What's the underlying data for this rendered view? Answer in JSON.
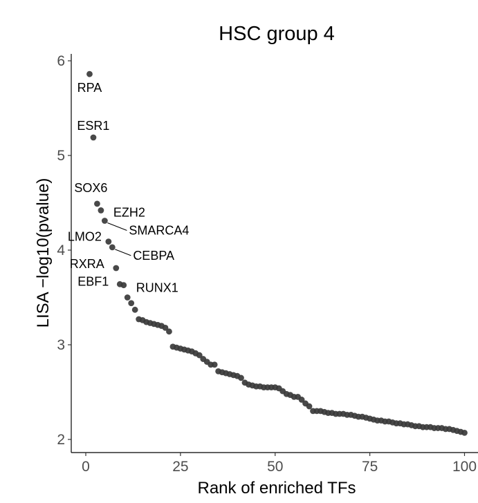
{
  "chart_data": {
    "type": "scatter",
    "title": "HSC group 4",
    "xlabel": "Rank of enriched TFs",
    "ylabel": "LISA −log10(pvalue)",
    "xlim": [
      0,
      100
    ],
    "ylim": [
      2,
      6
    ],
    "xticks": [
      0,
      25,
      50,
      75,
      100
    ],
    "yticks": [
      2,
      3,
      4,
      5,
      6
    ],
    "grid": false,
    "legend": "none",
    "point_color": "#3a3a3a",
    "x": [
      1,
      2,
      3,
      4,
      5,
      6,
      7,
      8,
      9,
      10,
      11,
      12,
      13,
      14,
      15,
      16,
      17,
      18,
      19,
      20,
      21,
      22,
      23,
      24,
      25,
      26,
      27,
      28,
      29,
      30,
      31,
      32,
      33,
      34,
      35,
      36,
      37,
      38,
      39,
      40,
      41,
      42,
      43,
      44,
      45,
      46,
      47,
      48,
      49,
      50,
      51,
      52,
      53,
      54,
      55,
      56,
      57,
      58,
      59,
      60,
      61,
      62,
      63,
      64,
      65,
      66,
      67,
      68,
      69,
      70,
      71,
      72,
      73,
      74,
      75,
      76,
      77,
      78,
      79,
      80,
      81,
      82,
      83,
      84,
      85,
      86,
      87,
      88,
      89,
      90,
      91,
      92,
      93,
      94,
      95,
      96,
      97,
      98,
      99,
      100
    ],
    "y": [
      5.86,
      5.19,
      4.49,
      4.42,
      4.31,
      4.09,
      4.03,
      3.81,
      3.64,
      3.63,
      3.5,
      3.44,
      3.37,
      3.27,
      3.26,
      3.24,
      3.23,
      3.22,
      3.21,
      3.2,
      3.18,
      3.14,
      2.98,
      2.97,
      2.96,
      2.95,
      2.94,
      2.93,
      2.91,
      2.89,
      2.85,
      2.82,
      2.79,
      2.79,
      2.72,
      2.71,
      2.7,
      2.69,
      2.68,
      2.67,
      2.65,
      2.6,
      2.58,
      2.57,
      2.56,
      2.56,
      2.55,
      2.55,
      2.55,
      2.55,
      2.54,
      2.51,
      2.48,
      2.47,
      2.45,
      2.45,
      2.42,
      2.38,
      2.35,
      2.3,
      2.3,
      2.3,
      2.29,
      2.28,
      2.28,
      2.27,
      2.27,
      2.27,
      2.26,
      2.26,
      2.25,
      2.24,
      2.24,
      2.23,
      2.22,
      2.21,
      2.2,
      2.2,
      2.19,
      2.19,
      2.18,
      2.17,
      2.17,
      2.16,
      2.16,
      2.15,
      2.14,
      2.14,
      2.13,
      2.13,
      2.13,
      2.12,
      2.12,
      2.12,
      2.11,
      2.11,
      2.1,
      2.09,
      2.08,
      2.07
    ],
    "annotations": [
      {
        "label": "RPA",
        "rank": 1,
        "anchor": "below",
        "leader": false
      },
      {
        "label": "ESR1",
        "rank": 2,
        "anchor": "above",
        "leader": false
      },
      {
        "label": "SOX6",
        "rank": 3,
        "anchor": "above-left",
        "leader": false
      },
      {
        "label": "EZH2",
        "rank": 4,
        "anchor": "right",
        "leader": false
      },
      {
        "label": "SMARCA4",
        "rank": 5,
        "anchor": "lower-right",
        "leader": true
      },
      {
        "label": "LMO2",
        "rank": 6,
        "anchor": "left",
        "leader": false
      },
      {
        "label": "CEBPA",
        "rank": 7,
        "anchor": "lower-right",
        "leader": true
      },
      {
        "label": "RXRA",
        "rank": 8,
        "anchor": "left",
        "leader": false
      },
      {
        "label": "EBF1",
        "rank": 9,
        "anchor": "left",
        "leader": false
      },
      {
        "label": "RUNX1",
        "rank": 10,
        "anchor": "right",
        "leader": false
      }
    ]
  }
}
